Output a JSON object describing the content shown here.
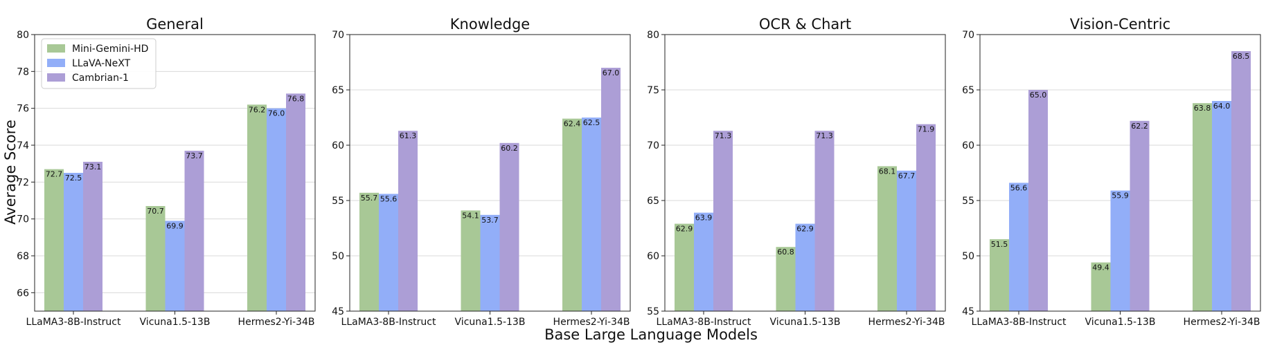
{
  "chart_data": {
    "type": "bar",
    "xlabel": "Base Large Language Models",
    "ylabel": "Average Score",
    "grid": "horizontal",
    "legend_position": "top-left",
    "categories": [
      "LLaMA3-8B-Instruct",
      "Vicuna1.5-13B",
      "Hermes2-Yi-34B"
    ],
    "series_meta": [
      {
        "name": "Mini-Gemini-HD",
        "color": "#a8c896"
      },
      {
        "name": "LLaVA-NeXT",
        "color": "#92aef8"
      },
      {
        "name": "Cambrian-1",
        "color": "#ac9ed6"
      }
    ],
    "panels": [
      {
        "title": "General",
        "ylim": [
          65,
          80
        ],
        "yticks": [
          66,
          68,
          70,
          72,
          74,
          76,
          78,
          80
        ],
        "series": [
          {
            "name": "Mini-Gemini-HD",
            "values": [
              72.7,
              70.7,
              76.2
            ]
          },
          {
            "name": "LLaVA-NeXT",
            "values": [
              72.5,
              69.9,
              76.0
            ]
          },
          {
            "name": "Cambrian-1",
            "values": [
              73.1,
              73.7,
              76.8
            ]
          }
        ]
      },
      {
        "title": "Knowledge",
        "ylim": [
          45,
          70
        ],
        "yticks": [
          45,
          50,
          55,
          60,
          65,
          70
        ],
        "series": [
          {
            "name": "Mini-Gemini-HD",
            "values": [
              55.7,
              54.1,
              62.4
            ]
          },
          {
            "name": "LLaVA-NeXT",
            "values": [
              55.6,
              53.7,
              62.5
            ]
          },
          {
            "name": "Cambrian-1",
            "values": [
              61.3,
              60.2,
              67.0
            ]
          }
        ]
      },
      {
        "title": "OCR & Chart",
        "ylim": [
          55,
          80
        ],
        "yticks": [
          55,
          60,
          65,
          70,
          75,
          80
        ],
        "series": [
          {
            "name": "Mini-Gemini-HD",
            "values": [
              62.9,
              60.8,
              68.1
            ]
          },
          {
            "name": "LLaVA-NeXT",
            "values": [
              63.9,
              62.9,
              67.7
            ]
          },
          {
            "name": "Cambrian-1",
            "values": [
              71.3,
              71.3,
              71.9
            ]
          }
        ]
      },
      {
        "title": "Vision-Centric",
        "ylim": [
          45,
          70
        ],
        "yticks": [
          45,
          50,
          55,
          60,
          65,
          70
        ],
        "series": [
          {
            "name": "Mini-Gemini-HD",
            "values": [
              51.5,
              49.4,
              63.8
            ]
          },
          {
            "name": "LLaVA-NeXT",
            "values": [
              56.6,
              55.9,
              64.0
            ]
          },
          {
            "name": "Cambrian-1",
            "values": [
              65.0,
              62.2,
              68.5
            ]
          }
        ]
      }
    ]
  }
}
